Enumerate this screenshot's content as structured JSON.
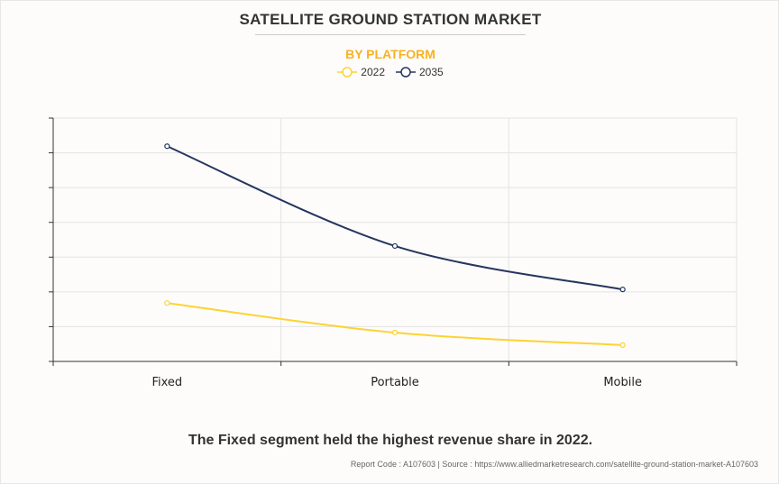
{
  "header": {
    "title": "SATELLITE GROUND STATION MARKET",
    "subtitle": "BY PLATFORM"
  },
  "caption": "The Fixed segment held the highest revenue share in 2022.",
  "footer": "Report Code : A107603  |  Source : https://www.alliedmarketresearch.com/satellite-ground-station-market-A107603",
  "chart_data": {
    "type": "line",
    "categories": [
      "Fixed",
      "Portable",
      "Mobile"
    ],
    "series": [
      {
        "name": "2022",
        "color": "#fcd333",
        "values": [
          1.68,
          0.83,
          0.47
        ]
      },
      {
        "name": "2035",
        "color": "#26365e",
        "values": [
          6.19,
          3.32,
          2.07
        ]
      }
    ],
    "ylim": [
      0,
      7
    ],
    "y_tick_labels_shown": false,
    "grid": true,
    "legend": "top-center",
    "smooth": true
  }
}
